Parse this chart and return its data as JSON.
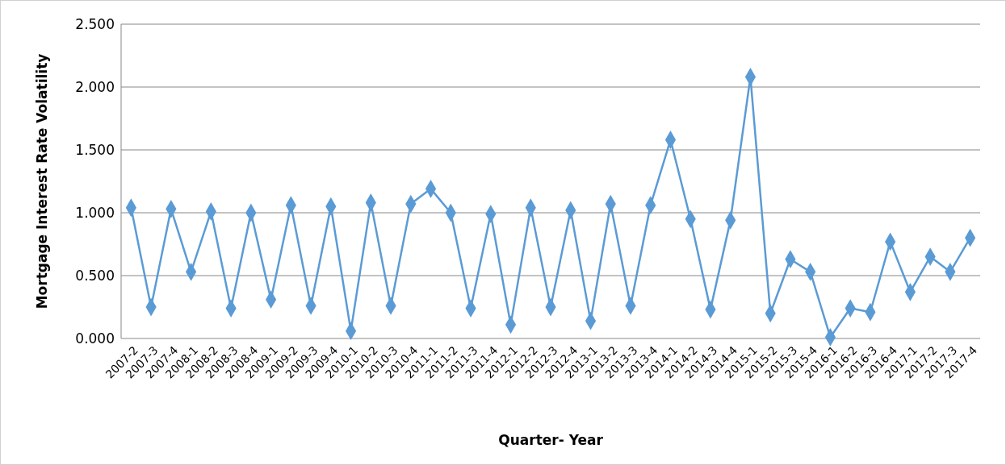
{
  "chart_data": {
    "type": "line",
    "xlabel": "Quarter- Year",
    "ylabel": "Mortgage Interest Rate Volatility",
    "categories": [
      "2007-2",
      "2007-3",
      "2007-4",
      "2008-1",
      "2008-2",
      "2008-3",
      "2008-4",
      "2009-1",
      "2009-2",
      "2009-3",
      "2009-4",
      "2010-1",
      "2010-2",
      "2010-3",
      "2010-4",
      "2011-1",
      "2011-2",
      "2011-3",
      "2011-4",
      "2012-1",
      "2012-2",
      "2012-3",
      "2012-4",
      "2013-1",
      "2013-2",
      "2013-3",
      "2013-4",
      "2014-1",
      "2014-2",
      "2014-3",
      "2014-4",
      "2015-1",
      "2015-2",
      "2015-3",
      "2015-4",
      "2016-1",
      "2016-2",
      "2016-3",
      "2016-4",
      "2017-1",
      "2017-2",
      "2017-3",
      "2017-4"
    ],
    "series": [
      {
        "color": "#5b9bd5",
        "values": [
          1.04,
          0.25,
          1.03,
          0.53,
          1.01,
          0.24,
          1.0,
          0.31,
          1.06,
          0.26,
          1.05,
          0.06,
          1.08,
          0.26,
          1.07,
          1.19,
          1.0,
          0.24,
          0.99,
          0.11,
          1.04,
          0.25,
          1.02,
          0.14,
          1.07,
          0.26,
          1.06,
          1.58,
          0.95,
          0.23,
          0.94,
          2.08,
          0.2,
          0.63,
          0.53,
          0.01,
          0.24,
          0.21,
          0.77,
          0.37,
          0.65,
          0.53,
          0.8
        ]
      }
    ],
    "ylim": [
      0,
      2.5
    ],
    "yticks": [
      {
        "value": 0,
        "label": "0.000"
      },
      {
        "value": 0.5,
        "label": "0.500"
      },
      {
        "value": 1,
        "label": "1.000"
      },
      {
        "value": 1.5,
        "label": "1.500"
      },
      {
        "value": 2,
        "label": "2.000"
      },
      {
        "value": 2.5,
        "label": "2.500"
      }
    ],
    "grid": "y",
    "marker": "diamond",
    "line_style": "solid"
  }
}
